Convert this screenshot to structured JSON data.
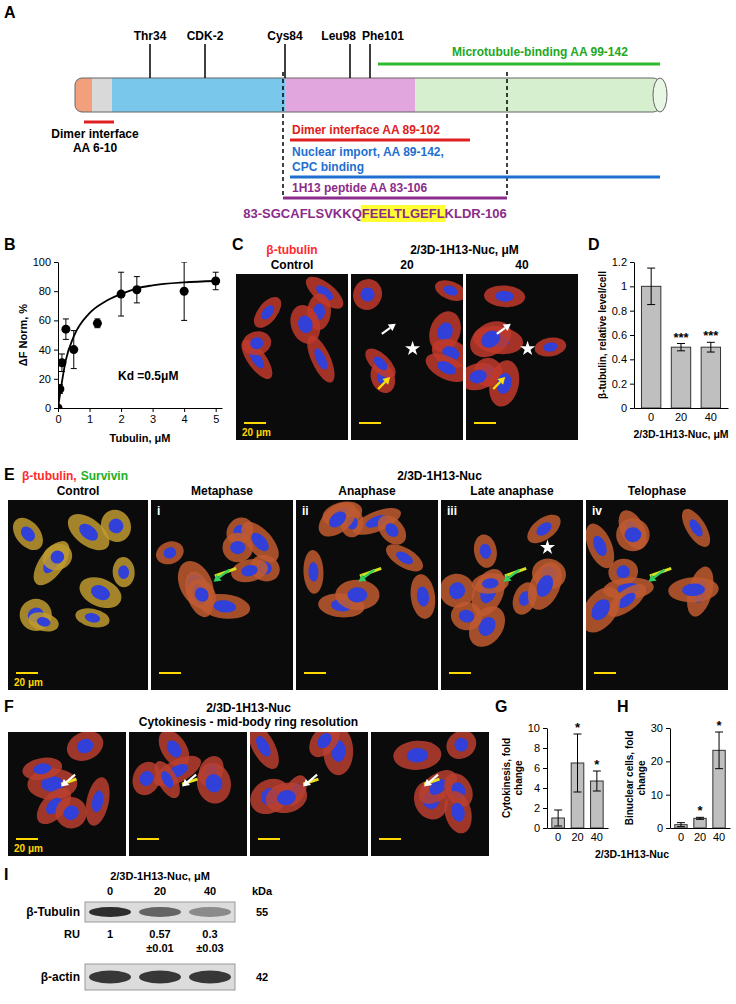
{
  "diagram": {
    "panel": "A",
    "sites": [
      "Thr34",
      "CDK-2",
      "Cys84",
      "Leu98",
      "Phe101"
    ],
    "microtubule_binding": "Microtubule-binding AA 99-142",
    "dimer_interface_n": [
      "Dimer interface",
      "AA 6-10"
    ],
    "dimer_interface_c": "Dimer interface AA 89-102",
    "nuclear_import": [
      "Nuclear import, AA 89-142,",
      "CPC binding"
    ],
    "peptide": "1H13 peptide AA 83-106",
    "sequence": [
      "83-SGCAFLSVKKQ",
      "FEELTLGEFL",
      "KLDR-106"
    ]
  },
  "chart_data": [
    {
      "panel": "B",
      "type": "scatter",
      "xlabel": "Tubulin, μM",
      "ylabel": "ΔF Norm, %",
      "annotation": "Kd =0.5μM",
      "xlim": [
        0,
        5.2
      ],
      "xticks": [
        0,
        1,
        2,
        3,
        4,
        5
      ],
      "ylim": [
        0,
        100
      ],
      "yticks": [
        0,
        20,
        40,
        60,
        80,
        100
      ],
      "series": [
        {
          "type": "scatter",
          "marker": "circle",
          "color": "#000000",
          "x": [
            0,
            0.06,
            0.125,
            0.25,
            0.5,
            1.25,
            2,
            2.5,
            4,
            5
          ],
          "values": [
            0,
            13,
            31,
            54,
            40,
            58,
            78,
            81,
            80,
            87
          ],
          "errors": [
            0,
            3,
            6,
            7,
            13,
            3,
            15,
            9,
            20,
            6
          ]
        },
        {
          "type": "line",
          "line_style": "solid",
          "color": "#000000",
          "x": [
            0,
            0.25,
            0.5,
            1,
            1.5,
            2,
            2.5,
            3,
            4,
            5
          ],
          "values": [
            0,
            33,
            49,
            65,
            73,
            78,
            82,
            84,
            86,
            87
          ]
        }
      ]
    },
    {
      "panel": "D",
      "type": "bar",
      "categories": [
        "0",
        "20",
        "40"
      ],
      "values": [
        1,
        0.5,
        0.5
      ],
      "errors": [
        0.15,
        0.03,
        0.04
      ],
      "significance": [
        null,
        "***",
        "***"
      ],
      "color": "#bfbfbf",
      "ylim": [
        0,
        1.2
      ],
      "yticks": [
        0,
        0.2,
        0.4,
        0.6,
        0.8,
        1,
        1.2
      ],
      "ylabel": "β-tubulin, relative level/cell",
      "xlabel": "2/3D-1H13-Nuc, μM"
    },
    {
      "panel": "G",
      "type": "bar",
      "categories": [
        "0",
        "20",
        "40"
      ],
      "values": [
        1,
        6.5,
        4.7
      ],
      "errors": [
        0.8,
        2.9,
        1
      ],
      "significance": [
        null,
        "*",
        "*"
      ],
      "color": "#bfbfbf",
      "ylim": [
        0,
        10
      ],
      "yticks": [
        0,
        2,
        4,
        6,
        8,
        10
      ],
      "ylabel": "Cytokinesis, fold change",
      "xlabel": "2/3D-1H13-Nuc"
    },
    {
      "panel": "H",
      "type": "bar",
      "categories": [
        "0",
        "20",
        "40"
      ],
      "values": [
        1,
        2.9,
        23.3
      ],
      "errors": [
        0.6,
        0.3,
        5.5
      ],
      "significance": [
        null,
        "*",
        "*"
      ],
      "color": "#bfbfbf",
      "ylim": [
        0,
        30
      ],
      "yticks": [
        0,
        10,
        20,
        30
      ],
      "ylabel": "Binuclear cells, fold change"
    }
  ],
  "images": {
    "C": {
      "panel": "C",
      "channels": [
        {
          "name": "β-tubulin",
          "color": "#ff2a2a"
        }
      ],
      "group": "2/3D-1H13-Nuc, μM",
      "labels": [
        "Control",
        "20",
        "40"
      ],
      "scale_bar": "20 μm"
    },
    "E": {
      "panel": "E",
      "channels": [
        {
          "name": "β-tubulin,",
          "color": "#ff2a2a"
        },
        {
          "name": "Survivin",
          "color": "#22b022"
        }
      ],
      "group": "2/3D-1H13-Nuc",
      "labels": [
        "Control",
        "Metaphase",
        "Anaphase",
        "Late anaphase",
        "Telophase"
      ],
      "numerals": [
        null,
        "i",
        "ii",
        "iii",
        "iv"
      ],
      "scale_bar": "20 μm"
    },
    "F": {
      "panel": "F",
      "group": "2/3D-1H13-Nuc",
      "subtitle": "Cytokinesis - mid-body ring resolution",
      "scale_bar": "20 μm"
    }
  },
  "blot": {
    "panel": "I",
    "title": "2/3D-1H13-Nuc, μM",
    "lanes": [
      "0",
      "20",
      "40"
    ],
    "unit": "kDa",
    "bands": [
      {
        "label": "β-Tubulin",
        "kda": 55
      },
      {
        "label": "β-actin",
        "kda": 42
      }
    ],
    "ru_label": "RU",
    "ru": [
      1,
      0.57,
      0.3
    ],
    "ru_sd": [
      null,
      "±0.01",
      "±0.03"
    ]
  }
}
